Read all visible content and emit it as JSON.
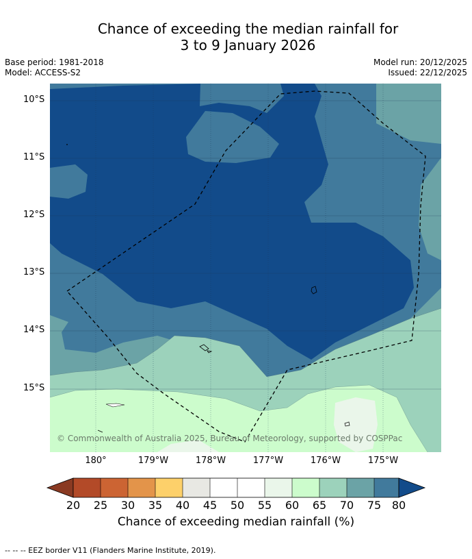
{
  "title_line1": "Chance of exceeding the median rainfall for",
  "title_line2": "3 to 9 January 2026",
  "base_period": "Base period: 1981-2018",
  "model": "Model: ACCESS-S2",
  "model_run": "Model run: 20/12/2025",
  "issued": "Issued: 22/12/2025",
  "lat_labels": [
    "10°S",
    "11°S",
    "12°S",
    "13°S",
    "14°S",
    "15°S"
  ],
  "lon_labels": [
    "180°",
    "179°W",
    "178°W",
    "177°W",
    "176°W",
    "175°W"
  ],
  "copyright": "© Commonwealth of Australia 2025, Bureau of Meteorology, supported by COSPPac",
  "colorbar": {
    "ticks": [
      "20",
      "25",
      "30",
      "35",
      "40",
      "45",
      "50",
      "55",
      "60",
      "65",
      "70",
      "75",
      "80"
    ],
    "label": "Chance of exceeding median rainfall (%)",
    "colors": [
      "#8a3a22",
      "#b34a28",
      "#cc6433",
      "#e3944a",
      "#fdd06a",
      "#e8e8e3",
      "#ffffff",
      "#ffffff",
      "#eaf6ea",
      "#ccfccc",
      "#9cd2bb",
      "#6ba3a6",
      "#417a9c",
      "#124b8a"
    ]
  },
  "legend_note": "--  --  -- EEZ border V11 (Flanders Marine Institute, 2019)."
}
